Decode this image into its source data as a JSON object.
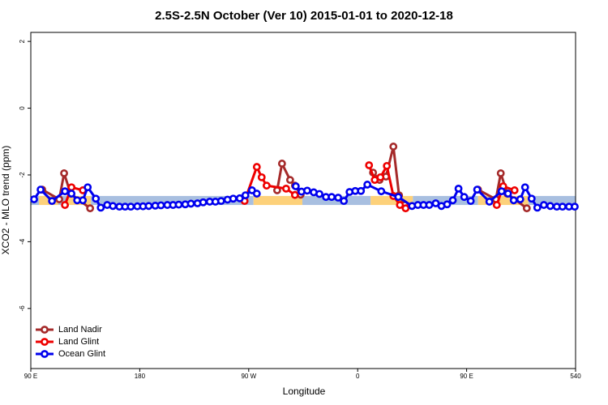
{
  "chart_data": {
    "type": "line",
    "title": "2.5S-2.5N October (Ver 10)   2015-01-01 to 2020-12-18",
    "x_label": "Longitude",
    "y_label": "XCO2 - MLO trend (ppm)",
    "xlim": [
      90,
      540
    ],
    "xticks": [
      {
        "value": 90,
        "label": "90 E"
      },
      180,
      {
        "value": 270,
        "label": "90 W"
      },
      {
        "value": 360,
        "label": "0"
      },
      {
        "value": 450,
        "label": "90 E"
      },
      540
    ],
    "ylim": [
      -7.8,
      2.27
    ],
    "yticks": [
      2,
      0,
      -2,
      -4,
      -6
    ],
    "legend": "bottom-left",
    "band_ylim": [
      -2.9,
      -2.63
    ],
    "bands": [
      {
        "from": 90,
        "to": 96.7,
        "color": "#a8bfe0"
      },
      {
        "from": 96.7,
        "to": 112.8,
        "color": "#fdd17a"
      },
      {
        "from": 112.8,
        "to": 119.5,
        "color": "#a8bfe0"
      },
      {
        "from": 119.5,
        "to": 139.7,
        "color": "#fdd17a"
      },
      {
        "from": 139.7,
        "to": 274,
        "color": "#a8bfe0"
      },
      {
        "from": 274,
        "to": 314.3,
        "color": "#fdd17a"
      },
      {
        "from": 314.3,
        "to": 370.7,
        "color": "#a8bfe0"
      },
      {
        "from": 370.7,
        "to": 405.6,
        "color": "#fdd17a"
      },
      {
        "from": 405.6,
        "to": 459.4,
        "color": "#a8bfe0"
      },
      {
        "from": 459.4,
        "to": 467.4,
        "color": "#fdd17a"
      },
      {
        "from": 467.4,
        "to": 471.5,
        "color": "#a8bfe0"
      },
      {
        "from": 471.5,
        "to": 501,
        "color": "#fdd17a"
      },
      {
        "from": 501,
        "to": 540,
        "color": "#a8bfe0"
      }
    ],
    "series": [
      {
        "name": "Land Nadir",
        "color": "#a52a2a",
        "x": [
          99.4,
          113.5,
          117.5,
          122.9,
          139,
          null,
          293.5,
          297.5,
          304.2,
          308.2,
          312.9,
          null,
          372.7,
          378.1,
          383.4,
          389.5,
          394.2,
          398.9,
          null,
          459.4,
          474.2,
          478.2,
          483.6,
          499.7
        ],
        "values": [
          -2.44,
          -2.73,
          -1.95,
          -2.56,
          -3.0,
          null,
          -2.46,
          -1.66,
          -2.15,
          -2.32,
          -2.59,
          null,
          -1.93,
          -2.15,
          -2.05,
          -1.15,
          -2.61,
          -2.9,
          null,
          -2.44,
          -2.73,
          -1.95,
          -2.56,
          -3.0
        ]
      },
      {
        "name": "Land Glint",
        "color": "#ee0000",
        "x": [
          118.2,
          123.6,
          133,
          null,
          266.6,
          276.7,
          280.7,
          284.8,
          300.9,
          308.2,
          null,
          369.4,
          374.1,
          378.8,
          384.1,
          389.5,
          394.9,
          399.6,
          null,
          474.9,
          480.2,
          489.6
        ],
        "values": [
          -2.9,
          -2.37,
          -2.46,
          null,
          -2.78,
          -1.76,
          -2.07,
          -2.32,
          -2.41,
          -2.6,
          null,
          -1.71,
          -2.15,
          -2.07,
          -1.73,
          -2.63,
          -2.9,
          -3.0,
          null,
          -2.9,
          -2.34,
          -2.46
        ]
      },
      {
        "name": "Ocean Glint",
        "color": "#0000ee",
        "x": [
          92.7,
          98.1,
          107.5,
          118.2,
          123.6,
          128.3,
          133,
          137,
          143.7,
          147.8,
          153.1,
          157.8,
          163.2,
          167.9,
          172.6,
          178,
          182.7,
          187.4,
          192.8,
          197.5,
          202.8,
          207.5,
          212.2,
          217.6,
          222.3,
          227.7,
          232.4,
          237.8,
          242.5,
          247.2,
          252.5,
          257.2,
          262.6,
          267.3,
          272.7,
          276.7,
          null,
          308.9,
          313.6,
          318.3,
          323.7,
          328.4,
          333.8,
          338.5,
          343.9,
          348.6,
          353.3,
          358,
          362.7,
          368,
          379.5,
          393.6,
          404.9,
          409.7,
          414.4,
          419.1,
          424.5,
          429.2,
          433.9,
          438.6,
          443.3,
          448,
          453.4,
          458.7,
          468.8,
          478.9,
          484.2,
          488.9,
          494.3,
          498.3,
          503.7,
          508.4,
          513.8,
          519.1,
          524.5,
          529.2,
          534.6,
          539.3
        ],
        "values": [
          -2.73,
          -2.44,
          -2.78,
          -2.49,
          -2.56,
          -2.76,
          -2.76,
          -2.37,
          -2.71,
          -2.98,
          -2.9,
          -2.93,
          -2.95,
          -2.95,
          -2.95,
          -2.94,
          -2.94,
          -2.93,
          -2.92,
          -2.91,
          -2.9,
          -2.9,
          -2.89,
          -2.88,
          -2.86,
          -2.85,
          -2.82,
          -2.8,
          -2.8,
          -2.78,
          -2.74,
          -2.71,
          -2.7,
          -2.61,
          -2.46,
          -2.56,
          null,
          -2.34,
          -2.5,
          -2.47,
          -2.52,
          -2.57,
          -2.66,
          -2.66,
          -2.68,
          -2.78,
          -2.51,
          -2.48,
          -2.48,
          -2.29,
          -2.49,
          -2.66,
          -2.93,
          -2.9,
          -2.9,
          -2.9,
          -2.85,
          -2.93,
          -2.88,
          -2.76,
          -2.41,
          -2.66,
          -2.78,
          -2.44,
          -2.8,
          -2.49,
          -2.56,
          -2.76,
          -2.73,
          -2.37,
          -2.71,
          -2.98,
          -2.9,
          -2.93,
          -2.95,
          -2.95,
          -2.95,
          -2.95
        ]
      }
    ]
  }
}
